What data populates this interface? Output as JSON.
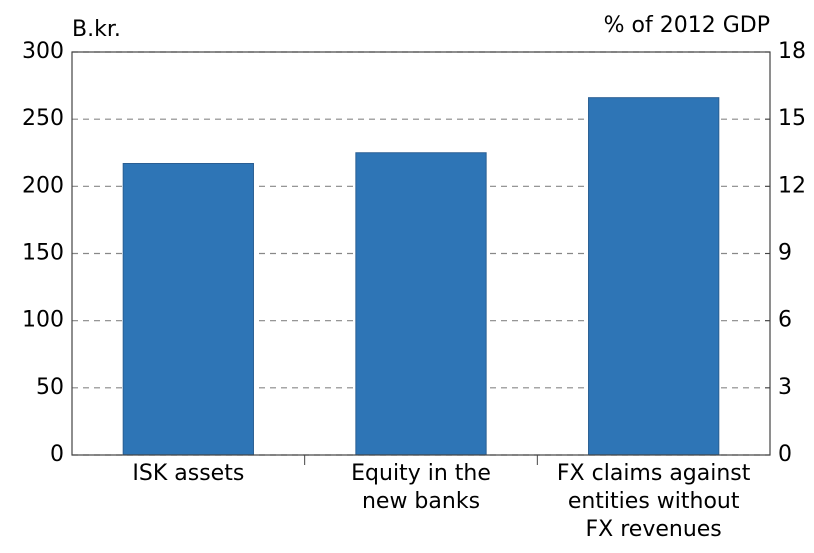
{
  "chart_data": {
    "type": "bar",
    "y_label": "B.kr.",
    "y2_label": "% of 2012 GDP",
    "categories": [
      "ISK assets",
      "Equity in the\nnew banks",
      "FX claims against\nentities without\nFX revenues"
    ],
    "values": [
      217,
      225,
      266
    ],
    "color": "#2e75b6",
    "ylim": [
      0,
      300
    ],
    "yticks": [
      0,
      50,
      100,
      150,
      200,
      250,
      300
    ],
    "y2lim": [
      0,
      18
    ],
    "y2ticks": [
      0,
      3,
      6,
      9,
      12,
      15,
      18
    ],
    "grid": true
  }
}
